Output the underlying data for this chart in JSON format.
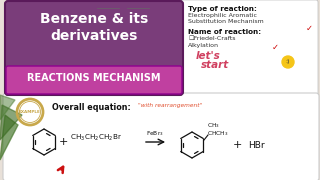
{
  "bg_color": "#e8e0d8",
  "title_box_color": "#7a3d7a",
  "title_text": "Benzene & its\nderivatives",
  "subtitle_box_color": "#c040a0",
  "subtitle_text": "REACTIONS MECHANISM",
  "type_label": "Type of reaction:",
  "type_value": "Electrophilic Aromatic\nSubstitution Mechanism",
  "name_label": "Name of reaction:",
  "name_value": "☐Friedel-Crafts\nAlkylation",
  "equation_label": "Overall equation:",
  "with_rearrangement": "\"with rearrangement\"",
  "catalyst": "FeBr₃",
  "example_color": "#c8a84b",
  "equation_bg": "#ffffff",
  "rearrangement_color": "#e05030",
  "lets_color": "#d04060",
  "right_panel_bg": "#ffffff",
  "lamp_color": "#555555",
  "check_color": "#cc0000"
}
